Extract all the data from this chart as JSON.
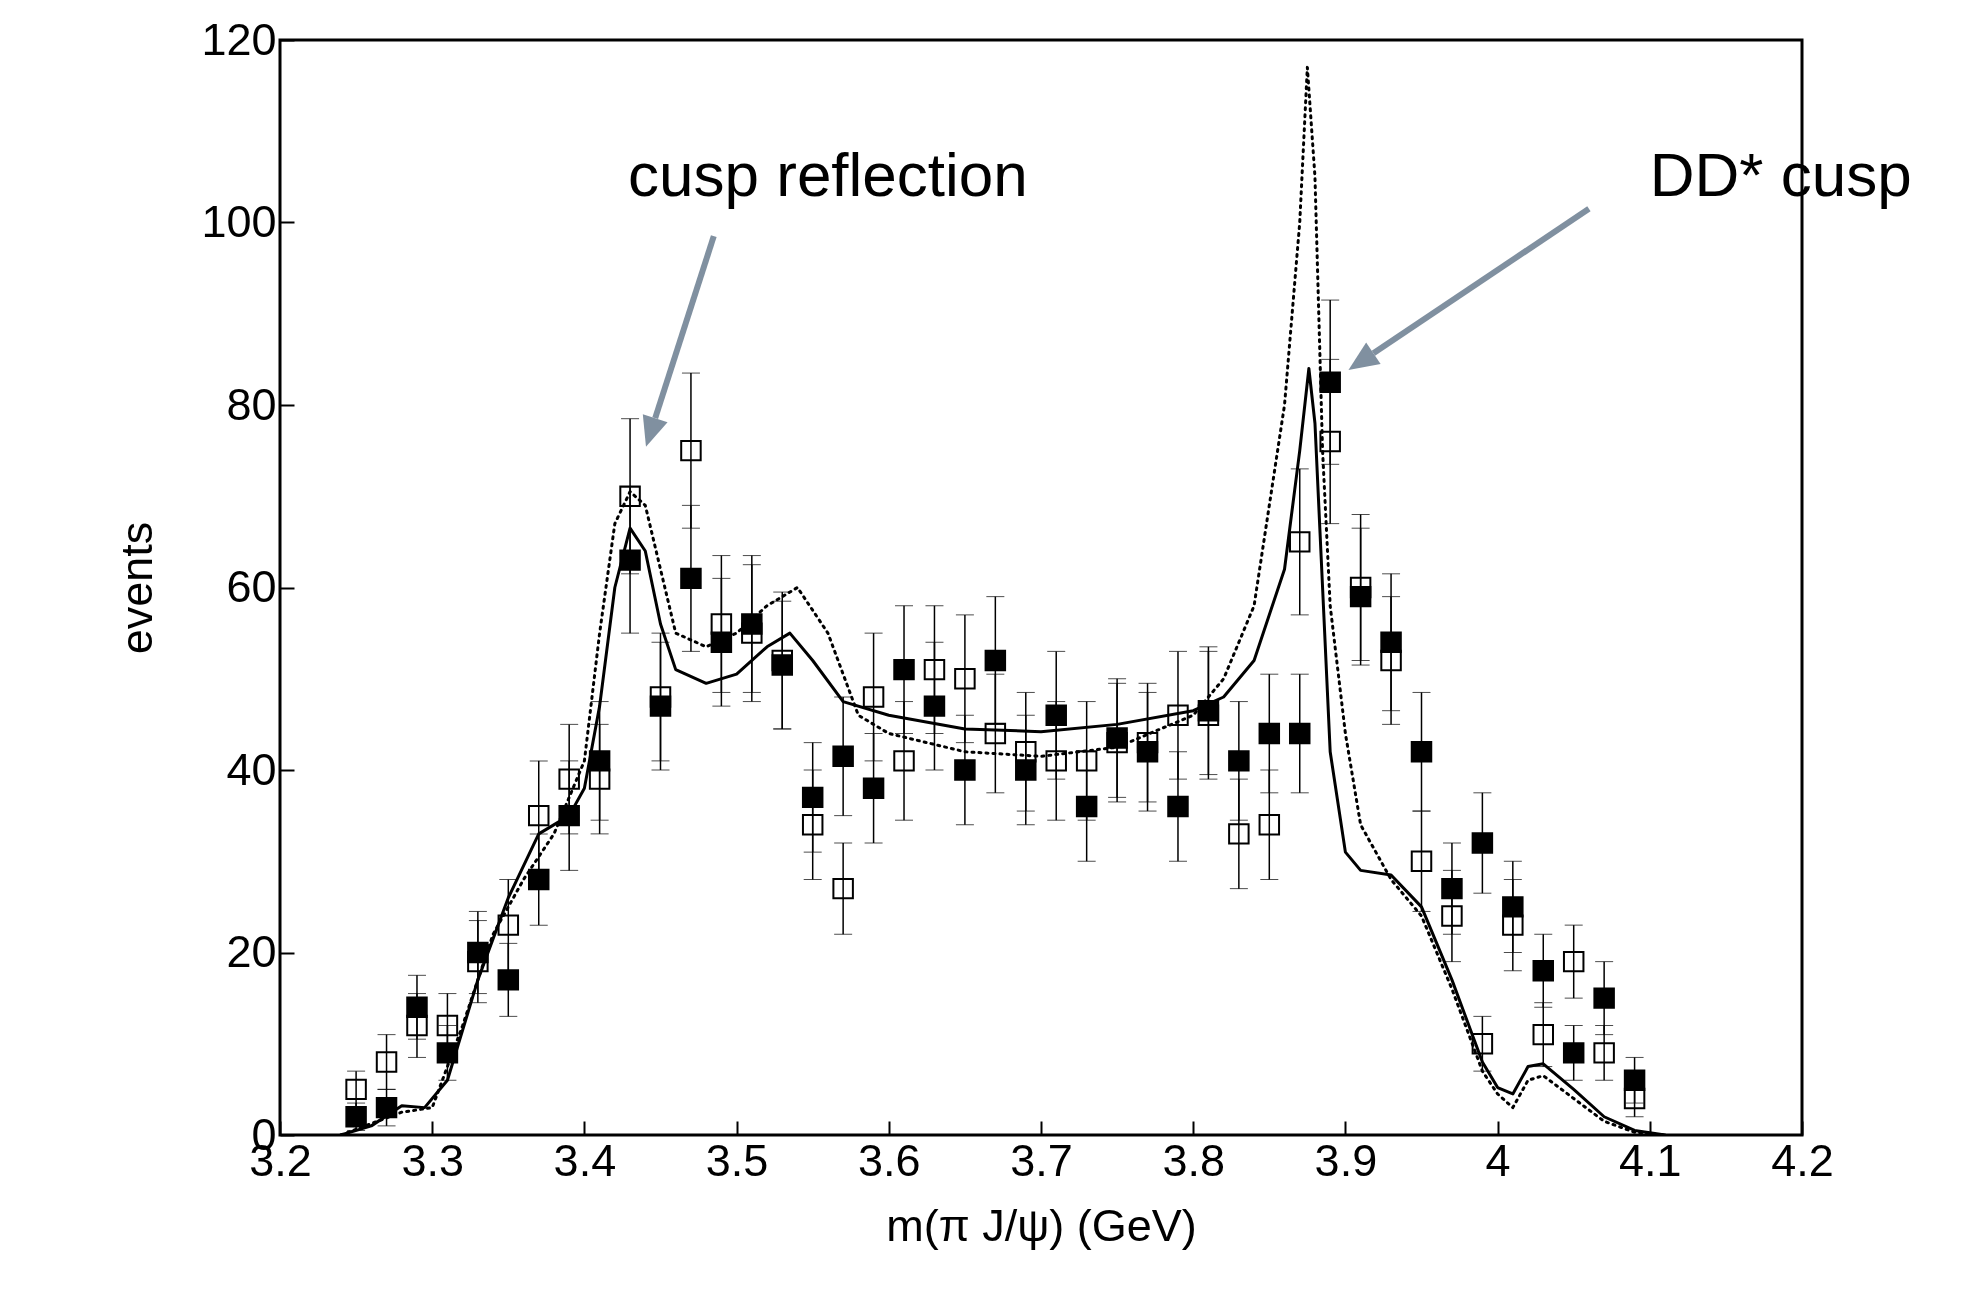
{
  "chart_data": {
    "type": "scatter",
    "xlabel": "m(π J/ψ) (GeV)",
    "ylabel": "events",
    "xlim": [
      3.2,
      4.2
    ],
    "xticks": [
      3.2,
      3.3,
      3.4,
      3.5,
      3.6,
      3.7,
      3.8,
      3.9,
      4,
      4.1,
      4.2
    ],
    "ylim": [
      0,
      120
    ],
    "yticks": [
      0,
      20,
      40,
      60,
      80,
      100,
      120
    ],
    "grid": false,
    "marker": "square",
    "x": [
      3.25,
      3.27,
      3.29,
      3.31,
      3.33,
      3.35,
      3.37,
      3.39,
      3.41,
      3.43,
      3.45,
      3.47,
      3.49,
      3.51,
      3.53,
      3.55,
      3.57,
      3.59,
      3.61,
      3.63,
      3.65,
      3.67,
      3.69,
      3.71,
      3.73,
      3.75,
      3.77,
      3.79,
      3.81,
      3.83,
      3.85,
      3.87,
      3.89,
      3.91,
      3.93,
      3.95,
      3.97,
      3.99,
      4.01,
      4.03,
      4.05,
      4.07,
      4.09
    ],
    "series": [
      {
        "color": "#000000",
        "values": [
          2,
          3,
          14,
          9,
          20,
          17,
          28,
          35,
          41,
          63,
          47,
          61,
          54,
          56,
          51.5,
          37,
          41.5,
          38,
          51,
          47,
          40,
          52,
          40,
          46,
          36,
          43.5,
          42,
          36,
          46.5,
          41,
          44,
          44,
          82.5,
          59,
          54,
          42,
          27,
          32,
          25,
          18,
          9,
          15,
          6
        ],
        "errors": [
          1.5,
          2,
          3.5,
          3,
          4.5,
          4,
          5,
          6,
          6.5,
          8,
          7,
          8,
          7,
          7.5,
          7,
          6,
          6.5,
          6,
          7,
          7,
          6,
          7,
          6,
          7,
          6,
          6.5,
          6.5,
          6,
          7,
          6.5,
          6.5,
          6.5,
          9,
          7.5,
          7.5,
          6.5,
          5,
          5.5,
          5,
          4,
          3,
          4,
          2.5
        ]
      },
      {
        "color": "#000000",
        "values": [
          5,
          8,
          12,
          12,
          19,
          23,
          35,
          39,
          39,
          70,
          48,
          75,
          56,
          55,
          52,
          34,
          27,
          48,
          41,
          51,
          50,
          44,
          42,
          41,
          41,
          43,
          43,
          46,
          46,
          33,
          34,
          65,
          76,
          60,
          52,
          30,
          24,
          10,
          23,
          11,
          19,
          9,
          4
        ],
        "errors": [
          2,
          3,
          3.5,
          3.5,
          4.5,
          5,
          6,
          6,
          6,
          8.5,
          7,
          8.5,
          7.5,
          7.5,
          7.5,
          6,
          5,
          7,
          6.5,
          7,
          7,
          6.5,
          6.5,
          6.5,
          6.5,
          6.5,
          6.5,
          7,
          7,
          6,
          6,
          8,
          9,
          8,
          7,
          5.5,
          5,
          3,
          5,
          3.5,
          4,
          3,
          2
        ]
      },
      {
        "type": "line",
        "color": "#000000",
        "line_style": "solid",
        "marker": "none",
        "x": [
          3.24,
          3.26,
          3.28,
          3.295,
          3.31,
          3.33,
          3.35,
          3.37,
          3.39,
          3.4,
          3.41,
          3.42,
          3.43,
          3.44,
          3.45,
          3.46,
          3.48,
          3.5,
          3.52,
          3.535,
          3.55,
          3.57,
          3.6,
          3.65,
          3.7,
          3.75,
          3.8,
          3.82,
          3.84,
          3.86,
          3.87,
          3.876,
          3.88,
          3.885,
          3.89,
          3.9,
          3.91,
          3.93,
          3.95,
          3.97,
          3.99,
          4.0,
          4.01,
          4.02,
          4.03,
          4.05,
          4.07,
          4.09,
          4.11
        ],
        "values": [
          0,
          1,
          3.2,
          3,
          6,
          17,
          26,
          33,
          35,
          38,
          47,
          60,
          66.5,
          64,
          56,
          51,
          49.5,
          50.5,
          53.5,
          55,
          52,
          47.5,
          46,
          44.5,
          44.2,
          45,
          46.5,
          48,
          52,
          62,
          75,
          84,
          78,
          60,
          42,
          31,
          29,
          28.5,
          25,
          17,
          8,
          5.2,
          4.5,
          7.5,
          7.8,
          5,
          2,
          0.5,
          0
        ]
      },
      {
        "type": "line",
        "color": "#000000",
        "line_style": "dotted",
        "marker": "none",
        "x": [
          3.24,
          3.28,
          3.3,
          3.32,
          3.34,
          3.36,
          3.38,
          3.4,
          3.41,
          3.42,
          3.43,
          3.44,
          3.45,
          3.46,
          3.48,
          3.5,
          3.52,
          3.54,
          3.56,
          3.58,
          3.6,
          3.65,
          3.7,
          3.75,
          3.8,
          3.82,
          3.84,
          3.86,
          3.87,
          3.875,
          3.88,
          3.885,
          3.89,
          3.9,
          3.91,
          3.93,
          3.95,
          3.97,
          3.99,
          4.0,
          4.01,
          4.02,
          4.03,
          4.05,
          4.07,
          4.09,
          4.11
        ],
        "values": [
          0,
          2.5,
          3,
          12,
          22,
          28,
          33,
          41,
          55,
          67,
          70.5,
          69,
          62,
          55,
          53.5,
          55,
          58,
          60,
          55,
          46,
          44,
          42,
          41.5,
          42.5,
          46,
          50,
          58,
          80,
          100,
          117,
          105,
          75,
          58,
          44,
          34,
          28,
          24,
          16,
          7,
          4.5,
          3,
          6,
          6.5,
          4,
          1.5,
          0.3,
          0
        ]
      }
    ],
    "annotations": [
      "cusp reflection",
      "DD* cusp"
    ]
  }
}
